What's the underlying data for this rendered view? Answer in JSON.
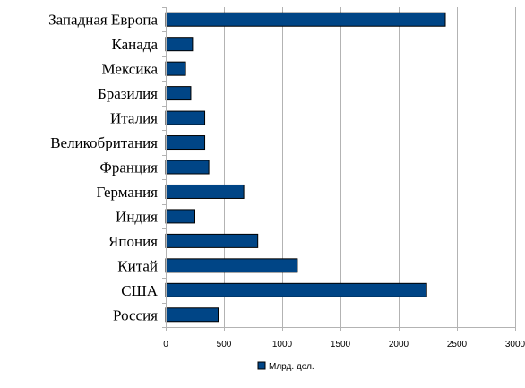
{
  "chart_data": {
    "type": "bar",
    "orientation": "horizontal",
    "categories": [
      "Западная Европа",
      "Канада",
      "Мексика",
      "Бразилия",
      "Италия",
      "Великобритания",
      "Франция",
      "Германия",
      "Индия",
      "Япония",
      "Китай",
      "США",
      "Россия"
    ],
    "series": [
      {
        "name": "Млрд. дол.",
        "color": "#004586",
        "values": [
          2400,
          230,
          170,
          215,
          335,
          335,
          370,
          670,
          250,
          790,
          1130,
          2240,
          450
        ]
      }
    ],
    "xlim": [
      0,
      3000
    ],
    "xticks": [
      0,
      500,
      1000,
      1500,
      2000,
      2500,
      3000
    ],
    "grid": "vertical",
    "legend_position": "bottom"
  }
}
